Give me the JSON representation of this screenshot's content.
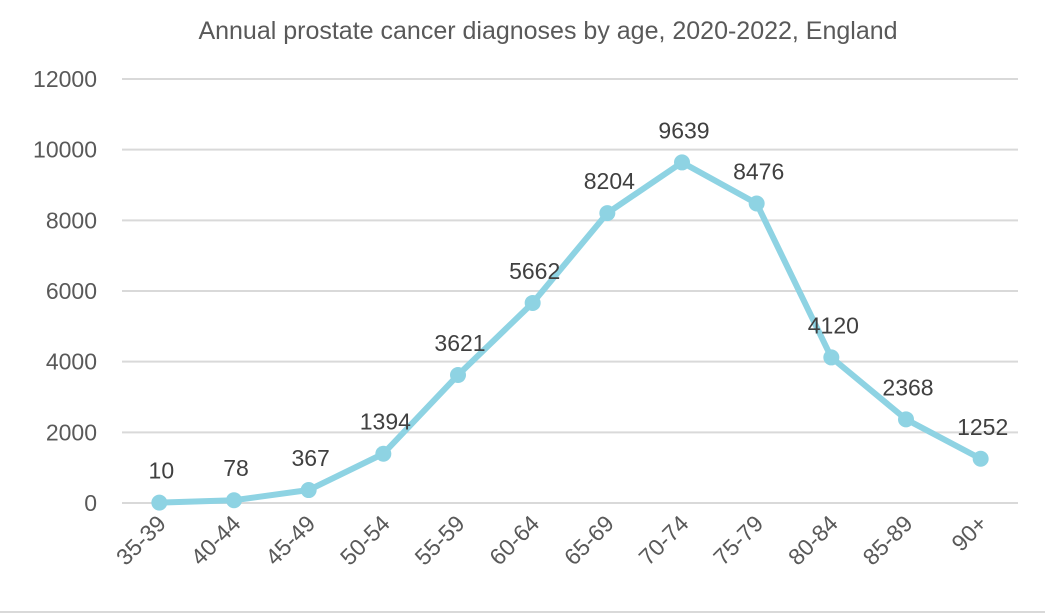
{
  "chart_data": {
    "type": "line",
    "title": "Annual prostate cancer diagnoses by age, 2020-2022, England",
    "xlabel": "",
    "ylabel": "",
    "categories": [
      "35-39",
      "40-44",
      "45-49",
      "50-54",
      "55-59",
      "60-64",
      "65-69",
      "70-74",
      "75-79",
      "80-84",
      "85-89",
      "90+"
    ],
    "series": [
      {
        "name": "Diagnoses",
        "values": [
          10,
          78,
          367,
          1394,
          3621,
          5662,
          8204,
          9639,
          8476,
          4120,
          2368,
          1252
        ],
        "color": "#8ED3E3"
      }
    ],
    "data_labels": [
      "10",
      "78",
      "367",
      "1394",
      "3621",
      "5662",
      "8204",
      "9639",
      "8476",
      "4120",
      "2368",
      "1252"
    ],
    "ylim": [
      0,
      12000
    ],
    "yticks": [
      0,
      2000,
      4000,
      6000,
      8000,
      10000,
      12000
    ],
    "ytick_labels": [
      "0",
      "2000",
      "4000",
      "6000",
      "8000",
      "10000",
      "12000"
    ],
    "grid": true,
    "legend": "none",
    "markers": true
  }
}
